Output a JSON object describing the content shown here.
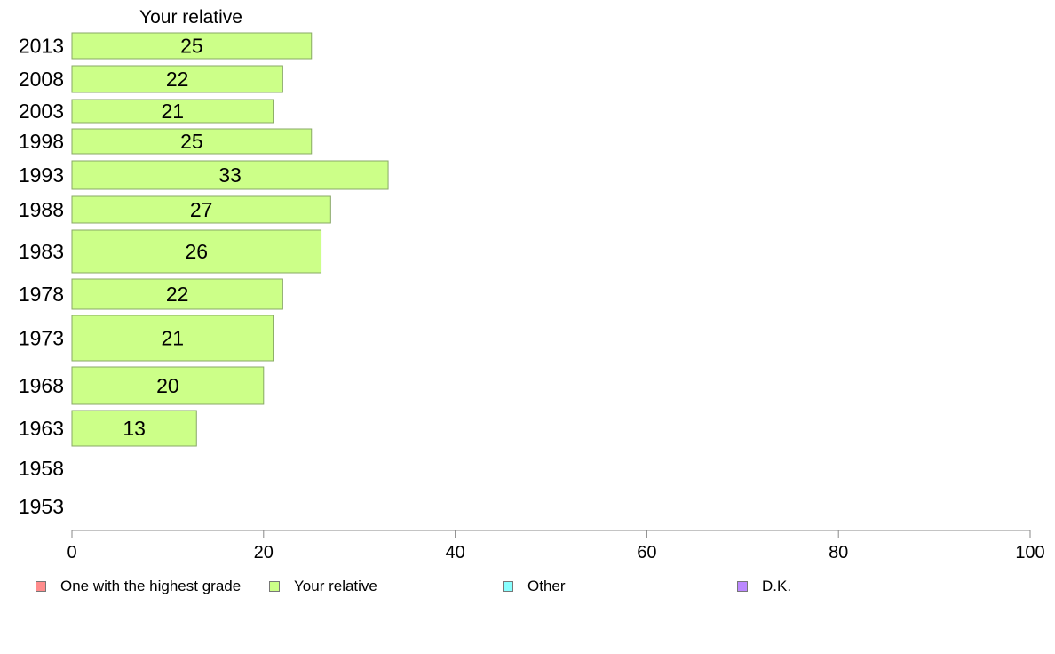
{
  "chart_data": {
    "type": "bar",
    "orientation": "horizontal",
    "title": "Your relative",
    "categories": [
      "2013",
      "2008",
      "2003",
      "1998",
      "1993",
      "1988",
      "1983",
      "1978",
      "1973",
      "1968",
      "1963",
      "1958",
      "1953"
    ],
    "series": [
      {
        "name": "Your relative",
        "values": [
          25,
          22,
          21,
          25,
          33,
          27,
          26,
          22,
          21,
          20,
          13,
          null,
          null
        ]
      }
    ],
    "data_labels": [
      "25",
      "22",
      "21",
      "25",
      "33",
      "27",
      "26",
      "22",
      "21",
      "20",
      "13",
      "",
      ""
    ],
    "xlim": [
      0,
      100
    ],
    "x_ticks": [
      0,
      20,
      40,
      60,
      80,
      100
    ],
    "x_tick_labels": [
      "0",
      "20",
      "40",
      "60",
      "80",
      "100"
    ],
    "grid": false,
    "legend_position": "bottom",
    "legend": [
      {
        "label": "One with the highest grade",
        "color": "#ff8c8c"
      },
      {
        "label": "Your relative",
        "color": "#ccff88"
      },
      {
        "label": "Other",
        "color": "#88ffff"
      },
      {
        "label": "D.K.",
        "color": "#bb88ff"
      }
    ],
    "bar_color": "#ccff88",
    "bar_border_color": "#88a866"
  }
}
